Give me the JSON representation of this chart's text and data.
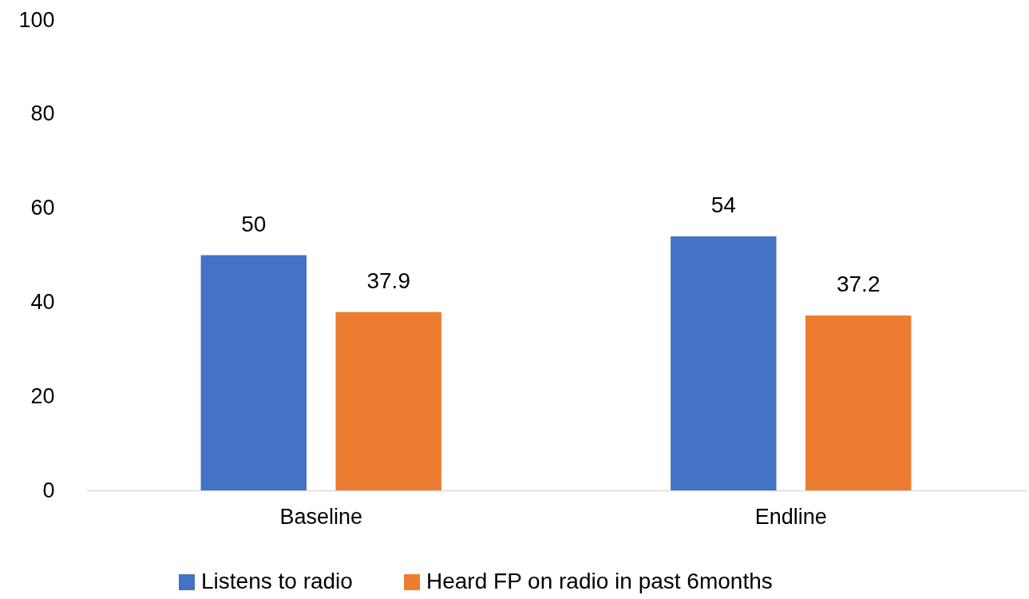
{
  "chart_data": {
    "type": "bar",
    "categories": [
      "Baseline",
      "Endline"
    ],
    "series": [
      {
        "name": "Listens to radio",
        "color": "#4472c4",
        "values": [
          50,
          54
        ]
      },
      {
        "name": "Heard FP on radio in past 6months",
        "color": "#ed7d31",
        "values": [
          37.9,
          37.2
        ]
      }
    ],
    "ylim": [
      0,
      100
    ],
    "yticks": [
      0,
      20,
      40,
      60,
      80,
      100
    ],
    "data_labels": true,
    "legend": "bottom",
    "grid": false
  }
}
